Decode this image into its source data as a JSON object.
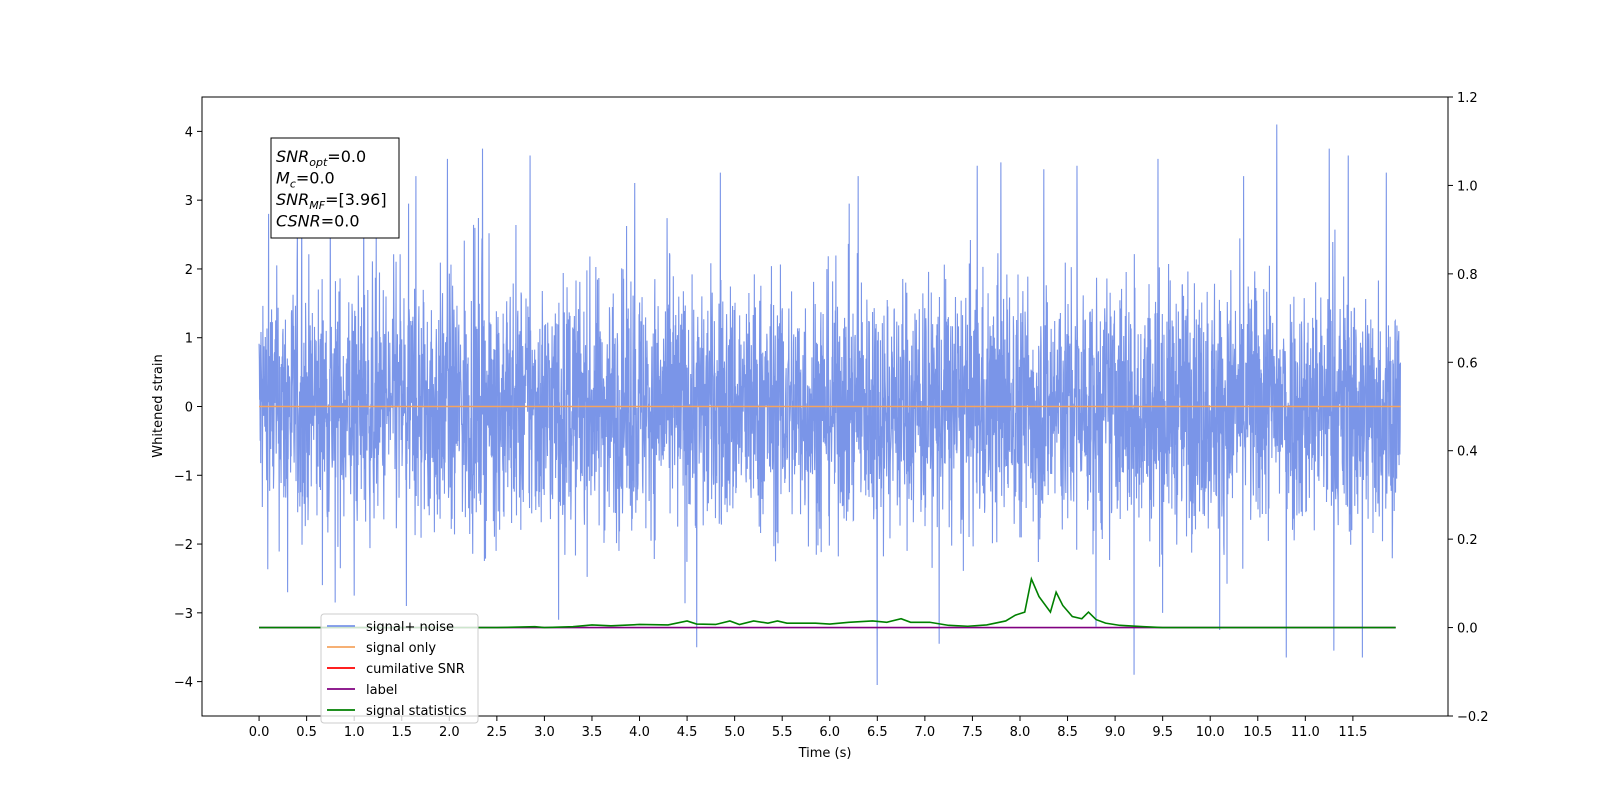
{
  "chart_data": {
    "type": "line",
    "title": "",
    "xlabel": "Time (s)",
    "ylabel": "Whitened strain",
    "xlim": [
      -0.6,
      12.5
    ],
    "ylim": [
      -4.5,
      4.5
    ],
    "y2lim": [
      -0.2,
      1.2
    ],
    "x_ticks": [
      0.0,
      0.5,
      1.0,
      1.5,
      2.0,
      2.5,
      3.0,
      3.5,
      4.0,
      4.5,
      5.0,
      5.5,
      6.0,
      6.5,
      7.0,
      7.5,
      8.0,
      8.5,
      9.0,
      9.5,
      10.0,
      10.5,
      11.0,
      11.5
    ],
    "x_tick_labels": [
      "0.0",
      "0.5",
      "1.0",
      "1.5",
      "2.0",
      "2.5",
      "3.0",
      "3.5",
      "4.0",
      "4.5",
      "5.0",
      "5.5",
      "6.0",
      "6.5",
      "7.0",
      "7.5",
      "8.0",
      "8.5",
      "9.0",
      "9.5",
      "10.0",
      "10.5",
      "11.0",
      "11.5"
    ],
    "y_ticks": [
      -4,
      -3,
      -2,
      -1,
      0,
      1,
      2,
      3,
      4
    ],
    "y_tick_labels": [
      "−4",
      "−3",
      "−2",
      "−1",
      "0",
      "1",
      "2",
      "3",
      "4"
    ],
    "y2_ticks": [
      -0.2,
      0.0,
      0.2,
      0.4,
      0.6,
      0.8,
      1.0,
      1.2
    ],
    "y2_tick_labels": [
      "−0.2",
      "0.0",
      "0.2",
      "0.4",
      "0.6",
      "0.8",
      "1.0",
      "1.2"
    ],
    "grid": false,
    "legend_position": "lower-left",
    "annotation": [
      {
        "sym": "SNR",
        "sub": "opt",
        "rest": "=0.0"
      },
      {
        "sym": "M",
        "sub": "c",
        "rest": "=0.0"
      },
      {
        "sym": "SNR",
        "sub": "MF",
        "rest": "=[3.96]"
      },
      {
        "sym": "CSNR",
        "sub": "",
        "rest": "=0.0"
      }
    ],
    "series": [
      {
        "name": "signal+ noise",
        "color": "#7a95e8",
        "axis": "left",
        "x_range": [
          0.0,
          12.0
        ],
        "envelope": {
          "typical_max": 2.0,
          "typical_min": -2.0
        },
        "peaks": [
          [
            0.1,
            2.8
          ],
          [
            0.45,
            3.05
          ],
          [
            0.75,
            2.95
          ],
          [
            1.1,
            3.2
          ],
          [
            1.65,
            3.35
          ],
          [
            1.98,
            3.6
          ],
          [
            2.35,
            3.75
          ],
          [
            2.85,
            3.65
          ],
          [
            3.95,
            3.25
          ],
          [
            4.85,
            3.4
          ],
          [
            6.3,
            3.35
          ],
          [
            7.55,
            3.5
          ],
          [
            7.8,
            3.55
          ],
          [
            8.25,
            3.45
          ],
          [
            8.6,
            3.5
          ],
          [
            9.45,
            3.6
          ],
          [
            10.35,
            3.35
          ],
          [
            10.7,
            4.1
          ],
          [
            11.25,
            3.75
          ],
          [
            11.45,
            3.65
          ],
          [
            11.85,
            3.4
          ]
        ],
        "troughs": [
          [
            0.3,
            -2.7
          ],
          [
            0.8,
            -2.85
          ],
          [
            1.0,
            -2.75
          ],
          [
            1.55,
            -2.9
          ],
          [
            2.35,
            -2.75
          ],
          [
            3.15,
            -3.1
          ],
          [
            4.6,
            -3.5
          ],
          [
            6.5,
            -4.05
          ],
          [
            7.15,
            -3.45
          ],
          [
            8.8,
            -3.2
          ],
          [
            9.2,
            -3.9
          ],
          [
            9.5,
            -3.0
          ],
          [
            10.1,
            -3.25
          ],
          [
            10.8,
            -3.65
          ],
          [
            11.3,
            -3.55
          ],
          [
            11.6,
            -3.65
          ]
        ]
      },
      {
        "name": "signal only",
        "color": "#f4a460",
        "axis": "left",
        "x": [
          0.0,
          12.0
        ],
        "y": [
          0.0,
          0.0
        ]
      },
      {
        "name": "cumilative SNR",
        "color": "#ff0000",
        "axis": "right",
        "x": [],
        "y": []
      },
      {
        "name": "label",
        "color": "#800080",
        "axis": "right",
        "x": [
          0.0,
          11.95
        ],
        "y": [
          0.0,
          0.0
        ]
      },
      {
        "name": "signal statistics",
        "color": "#008000",
        "axis": "right",
        "x": [
          0.0,
          2.5,
          2.9,
          3.0,
          3.3,
          3.5,
          3.7,
          4.0,
          4.3,
          4.5,
          4.6,
          4.8,
          4.95,
          5.05,
          5.2,
          5.35,
          5.45,
          5.55,
          5.7,
          5.85,
          6.0,
          6.2,
          6.45,
          6.6,
          6.75,
          6.85,
          7.05,
          7.25,
          7.45,
          7.65,
          7.85,
          7.95,
          8.05,
          8.12,
          8.2,
          8.32,
          8.38,
          8.45,
          8.55,
          8.65,
          8.72,
          8.8,
          8.9,
          9.05,
          9.3,
          9.5,
          11.95
        ],
        "y": [
          0.0,
          0.0,
          0.002,
          0.0,
          0.002,
          0.006,
          0.004,
          0.007,
          0.006,
          0.015,
          0.008,
          0.007,
          0.015,
          0.007,
          0.015,
          0.01,
          0.015,
          0.01,
          0.01,
          0.01,
          0.008,
          0.012,
          0.015,
          0.012,
          0.02,
          0.012,
          0.012,
          0.005,
          0.003,
          0.006,
          0.015,
          0.028,
          0.035,
          0.11,
          0.07,
          0.035,
          0.08,
          0.05,
          0.025,
          0.02,
          0.035,
          0.018,
          0.01,
          0.005,
          0.002,
          0.0,
          0.0
        ]
      }
    ]
  }
}
